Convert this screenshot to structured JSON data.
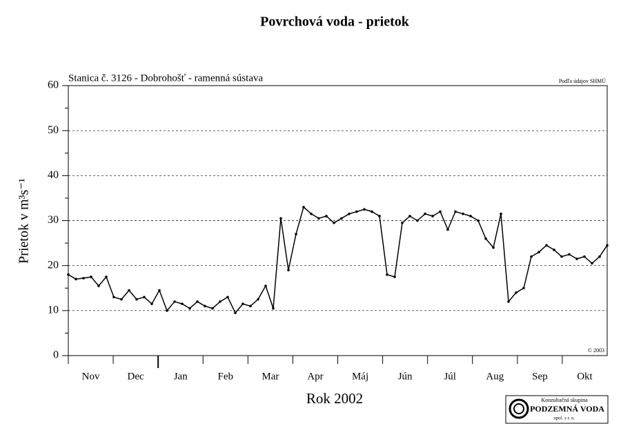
{
  "chart_data": {
    "type": "line",
    "title": "Povrchová voda - prietok",
    "subtitle": "Stanica č. 3126 - Dobrohošť - ramenná sústava",
    "source": "Podľa údajov SHMÚ",
    "copyright": "© 2003",
    "y_label": "Prietok v m³s⁻¹",
    "x_label": "Rok 2002",
    "x_labels": [
      "Nov",
      "Dec",
      "Jan",
      "Feb",
      "Mar",
      "Apr",
      "Máj",
      "Jún",
      "Júl",
      "Aug",
      "Sep",
      "Okt"
    ],
    "color": "#000000",
    "values": [
      18,
      17,
      17.2,
      17.5,
      15.5,
      17.5,
      13,
      12.5,
      14.5,
      12.5,
      13,
      11.5,
      14.5,
      10,
      12,
      11.5,
      10.5,
      12,
      11,
      10.5,
      12,
      13,
      9.5,
      11.5,
      11,
      12.5,
      15.5,
      10.5,
      30.5,
      19,
      27,
      33,
      31.5,
      30.5,
      31,
      29.5,
      30.5,
      31.5,
      32,
      32.5,
      32,
      31,
      18,
      17.5,
      29.5,
      31,
      30,
      31.5,
      31,
      32,
      28,
      32,
      31.5,
      31,
      30,
      26,
      24,
      31.5,
      12,
      14,
      15,
      22,
      23,
      24.5,
      23.5,
      22,
      22.5,
      21.5,
      22,
      20.5,
      22,
      24.5
    ],
    "ylim": [
      0,
      60
    ],
    "yticks": [
      0,
      10,
      20,
      30,
      40,
      50,
      60
    ],
    "grid": true
  },
  "logo": {
    "line1": "Konzultačná skupina",
    "line2": "PODZEMNÁ VODA",
    "line3": "spol. s r. o."
  }
}
